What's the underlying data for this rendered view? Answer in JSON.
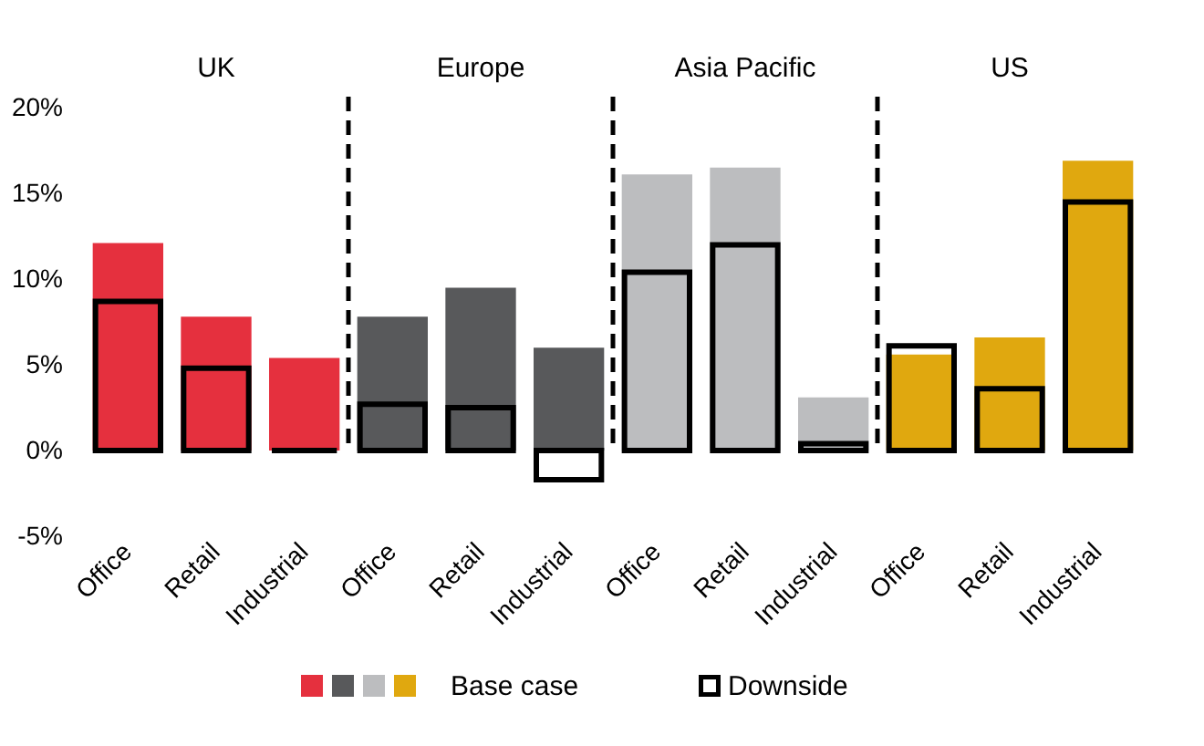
{
  "chart_data": {
    "type": "bar",
    "categories": [
      "Office",
      "Retail",
      "Industrial",
      "Office",
      "Retail",
      "Industrial",
      "Office",
      "Retail",
      "Industrial",
      "Office",
      "Retail",
      "Industrial"
    ],
    "series": [
      {
        "name": "Base case",
        "colors": [
          "#e5303e",
          "#e5303e",
          "#e5303e",
          "#58595b",
          "#58595b",
          "#58595b",
          "#bcbdbf",
          "#bcbdbf",
          "#bcbdbf",
          "#e0a80f",
          "#e0a80f",
          "#e0a80f"
        ],
        "values": [
          12.1,
          7.8,
          5.4,
          7.8,
          9.5,
          6.0,
          16.1,
          16.5,
          3.1,
          5.6,
          6.6,
          16.9
        ]
      },
      {
        "name": "Downside",
        "color": "#000000",
        "values": [
          8.7,
          4.8,
          0.0,
          2.7,
          2.5,
          -1.7,
          10.4,
          12.0,
          0.4,
          6.1,
          3.6,
          14.5
        ]
      }
    ],
    "annotations": [
      "UK",
      "Europe",
      "Asia Pacific",
      "US"
    ],
    "ylim": [
      -5,
      20
    ],
    "yticks": [
      {
        "value": -5,
        "label": "-5%"
      },
      {
        "value": 0,
        "label": "0%"
      },
      {
        "value": 5,
        "label": "5%"
      },
      {
        "value": 10,
        "label": "10%"
      },
      {
        "value": 15,
        "label": "15%"
      },
      {
        "value": 20,
        "label": "20%"
      }
    ],
    "legend": "bottom"
  }
}
